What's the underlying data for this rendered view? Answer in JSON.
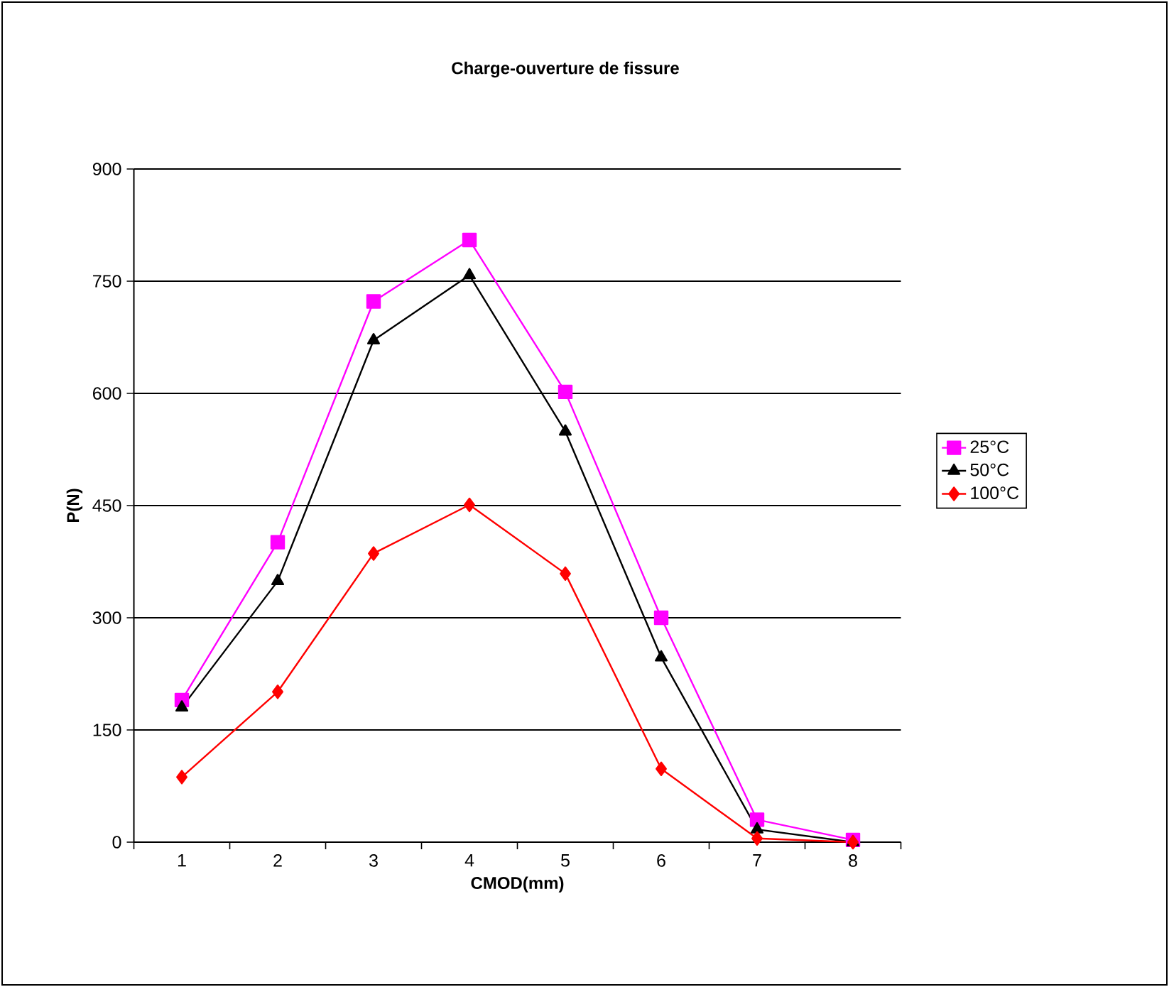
{
  "chart_data": {
    "type": "line",
    "title": "Charge-ouverture de fissure",
    "xlabel": "CMOD(mm)",
    "ylabel": "P(N)",
    "categories": [
      "1",
      "2",
      "3",
      "4",
      "5",
      "6",
      "7",
      "8"
    ],
    "series": [
      {
        "name": "25°C",
        "color": "#ff00ff",
        "marker": "square",
        "values": [
          190,
          401,
          723,
          805,
          602,
          300,
          30,
          3
        ]
      },
      {
        "name": "50°C",
        "color": "#000000",
        "marker": "triangle",
        "values": [
          180,
          349,
          671,
          758,
          549,
          247,
          17,
          0
        ]
      },
      {
        "name": "100°C",
        "color": "#ff0000",
        "marker": "diamond",
        "values": [
          87,
          201,
          386,
          451,
          359,
          98,
          5,
          0
        ]
      }
    ],
    "ylim": [
      0,
      900
    ],
    "yticks": [
      0,
      150,
      300,
      450,
      600,
      750,
      900
    ],
    "grid": "y",
    "legend": "right",
    "line_style": "solid"
  }
}
